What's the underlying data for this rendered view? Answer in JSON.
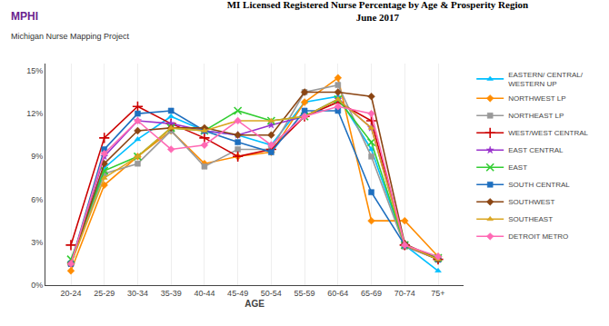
{
  "chart_data": {
    "type": "line",
    "title": "MI Licensed Registered Nurse Percentage by Age & Prosperity Region",
    "subtitle": "June 2017",
    "annotations": [
      "MPHI",
      "Michigan Nurse Mapping Project"
    ],
    "xlabel": "AGE",
    "categories": [
      "20-24",
      "25-29",
      "30-34",
      "35-39",
      "40-44",
      "45-49",
      "50-54",
      "55-59",
      "60-64",
      "65-69",
      "70-74",
      "75+"
    ],
    "series": [
      {
        "name": "EASTERN/ CENTRAL/\nWESTERN UP",
        "color": "#00BFFF",
        "marker": "triangle-up",
        "values": [
          1.5,
          8.2,
          10.2,
          11.8,
          10.8,
          10.5,
          9.8,
          12.8,
          13.2,
          9.5,
          2.8,
          1.0
        ]
      },
      {
        "name": "NORTHWEST LP",
        "color": "#FF8C00",
        "marker": "diamond",
        "values": [
          1.0,
          7.0,
          9.0,
          10.8,
          8.5,
          9.0,
          9.3,
          12.8,
          14.5,
          4.5,
          4.5,
          2.0
        ]
      },
      {
        "name": "NORTHEAST LP",
        "color": "#999999",
        "marker": "square",
        "values": [
          1.5,
          7.8,
          8.5,
          10.8,
          8.3,
          9.5,
          9.5,
          13.5,
          14.0,
          9.0,
          2.7,
          1.8
        ]
      },
      {
        "name": "WEST/WEST CENTRAL",
        "color": "#CC0000",
        "marker": "plus",
        "values": [
          2.8,
          10.3,
          12.5,
          11.3,
          10.3,
          9.0,
          9.5,
          11.8,
          12.8,
          11.5,
          2.8,
          1.8
        ]
      },
      {
        "name": "EAST CENTRAL",
        "color": "#9932CC",
        "marker": "star",
        "values": [
          1.5,
          9.0,
          11.5,
          11.3,
          10.8,
          10.5,
          11.2,
          11.8,
          13.0,
          11.0,
          2.8,
          1.8
        ]
      },
      {
        "name": "EAST",
        "color": "#32CD32",
        "marker": "x",
        "values": [
          1.8,
          8.0,
          9.0,
          11.0,
          10.8,
          12.2,
          11.5,
          11.8,
          13.0,
          10.0,
          2.8,
          1.9
        ]
      },
      {
        "name": "SOUTH CENTRAL",
        "color": "#1E6FBF",
        "marker": "square",
        "values": [
          1.5,
          9.5,
          12.0,
          12.2,
          10.8,
          10.0,
          9.3,
          12.2,
          12.2,
          6.5,
          2.8,
          1.8
        ]
      },
      {
        "name": "SOUTHWEST",
        "color": "#8B4513",
        "marker": "diamond",
        "values": [
          1.5,
          8.5,
          10.8,
          11.0,
          11.0,
          10.5,
          10.5,
          13.5,
          13.5,
          13.2,
          2.9,
          1.8
        ]
      },
      {
        "name": "SOUTHEAST",
        "color": "#DAA520",
        "marker": "triangle-up",
        "values": [
          1.5,
          7.5,
          9.0,
          11.0,
          10.8,
          11.5,
          11.5,
          11.8,
          13.0,
          11.0,
          2.8,
          1.8
        ]
      },
      {
        "name": "DETROIT METRO",
        "color": "#FF69B4",
        "marker": "diamond",
        "values": [
          1.5,
          9.2,
          11.5,
          9.5,
          9.8,
          11.5,
          9.8,
          11.8,
          12.5,
          12.0,
          2.8,
          2.0
        ]
      }
    ],
    "ylim": [
      0,
      15.5
    ],
    "yticks": [
      {
        "value": 0,
        "label": "0%"
      },
      {
        "value": 3,
        "label": "3%"
      },
      {
        "value": 6,
        "label": "6%"
      },
      {
        "value": 9,
        "label": "9%"
      },
      {
        "value": 12,
        "label": "12%"
      },
      {
        "value": 15,
        "label": "15%"
      }
    ],
    "grid": "x",
    "legend": "right"
  }
}
